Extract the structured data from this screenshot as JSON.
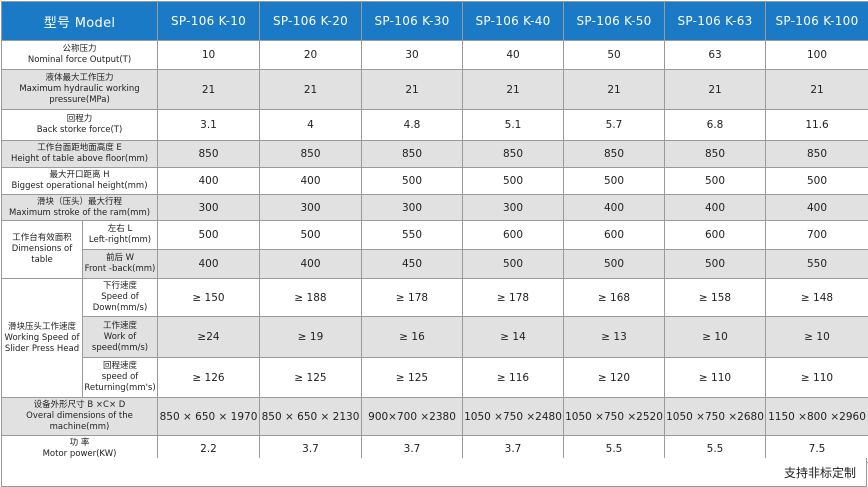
{
  "header": {
    "model_label": "型号  Model",
    "models": [
      "SP-106 K-10",
      "SP-106 K-20",
      "SP-106 K-30",
      "SP-106 K-40",
      "SP-106 K-50",
      "SP-106 K-63",
      "SP-106 K-100"
    ]
  },
  "rows": {
    "nominal_force": {
      "label_cn": "公称压力",
      "label_en": "Nominal force Output(T)",
      "values": [
        "10",
        "20",
        "30",
        "40",
        "50",
        "63",
        "100"
      ]
    },
    "max_pressure": {
      "label_cn": "液体最大工作压力",
      "label_en1": "Maximum hydraulic working",
      "label_en2": "pressure(MPa)",
      "values": [
        "21",
        "21",
        "21",
        "21",
        "21",
        "21",
        "21"
      ]
    },
    "return_force": {
      "label_cn": "回程力",
      "label_en": "Back storke force(T)",
      "values": [
        "3.1",
        "4",
        "4.8",
        "5.1",
        "5.7",
        "6.8",
        "11.6"
      ]
    },
    "table_height": {
      "label_cn": "工作台面距地面高度 E",
      "label_en": "Height of table above floor(mm)",
      "values": [
        "850",
        "850",
        "850",
        "850",
        "850",
        "850",
        "850"
      ]
    },
    "open_height": {
      "label_cn": "最大开口距离 H",
      "label_en": "Biggest operational height(mm)",
      "values": [
        "400",
        "400",
        "500",
        "500",
        "500",
        "500",
        "500"
      ]
    },
    "max_stroke": {
      "label_cn": "滑块（压头）最大行程",
      "label_en": "Maximum stroke of the ram(mm)",
      "values": [
        "300",
        "300",
        "300",
        "300",
        "400",
        "400",
        "400"
      ]
    },
    "table_dims": {
      "group_cn": "工作台有效面积",
      "group_en": "Dimensions of table",
      "lr": {
        "label_cn": "左右 L",
        "label_en": "Left-right(mm)",
        "values": [
          "500",
          "500",
          "550",
          "600",
          "600",
          "600",
          "700"
        ]
      },
      "fb": {
        "label_cn": "前后 W",
        "label_en": "Front -back(mm)",
        "values": [
          "400",
          "400",
          "450",
          "500",
          "500",
          "500",
          "550"
        ]
      }
    },
    "speed": {
      "group_cn": "滑块压头工作速度",
      "group_en1": "Working Speed of",
      "group_en2": "Slider Press Head",
      "down": {
        "label_cn": "下行速度",
        "label_en1": "Speed of",
        "label_en2": "Down(mm/s)",
        "values": [
          "≥ 150",
          "≥ 188",
          "≥ 178",
          "≥ 178",
          "≥ 168",
          "≥ 158",
          "≥ 148"
        ]
      },
      "work": {
        "label_cn": "工作速度",
        "label_en1": "Work of",
        "label_en2": "speed(mm/s)",
        "values": [
          "≥24",
          "≥ 19",
          "≥ 16",
          "≥ 14",
          "≥ 13",
          "≥ 10",
          "≥ 10"
        ]
      },
      "ret": {
        "label_cn": "回程速度",
        "label_en1": "speed of",
        "label_en2": "Returning(mm's)",
        "values": [
          "≥ 126",
          "≥ 125",
          "≥ 125",
          "≥ 116",
          "≥ 120",
          "≥ 110",
          "≥ 110"
        ]
      }
    },
    "overall": {
      "label_cn": "设备外形尺寸 B ×C× D",
      "label_en": "Overal dimensions of the machine(mm)",
      "values": [
        "850 × 650 × 1970",
        "850 × 650 × 2130",
        "900×700 ×2380",
        "1050 ×750 ×2480",
        "1050 ×750 ×2520",
        "1050 ×750 ×2680",
        "1150 ×800 ×2960"
      ]
    },
    "motor": {
      "label_cn": "功 率",
      "label_en": "Motor power(KW)",
      "values": [
        "2.2",
        "3.7",
        "3.7",
        "3.7",
        "5.5",
        "5.5",
        "7.5"
      ]
    }
  },
  "footer": {
    "note": "支持非标定制"
  }
}
